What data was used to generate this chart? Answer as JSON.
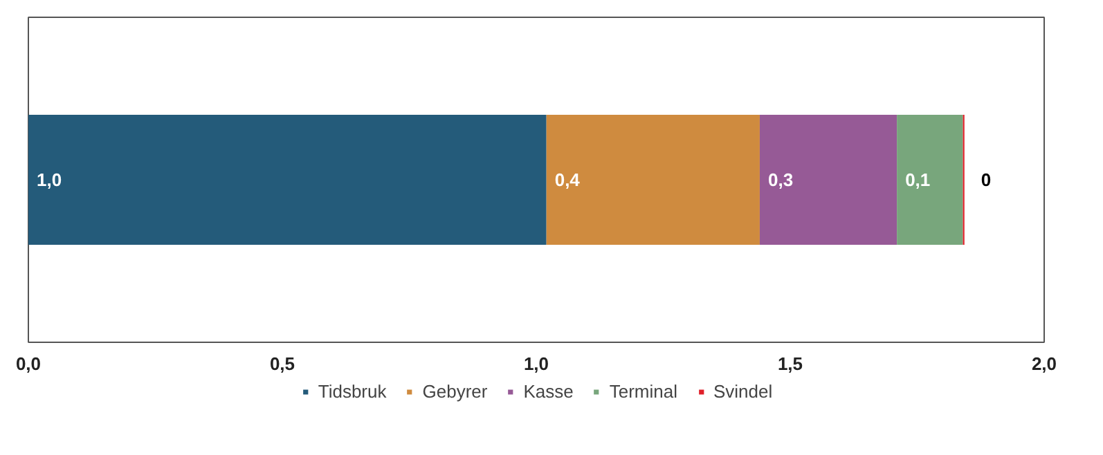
{
  "chart_data": {
    "type": "bar",
    "orientation": "horizontal",
    "stacked": true,
    "categories": [
      null
    ],
    "series": [
      {
        "name": "Tidsbruk",
        "color": "#245b7a",
        "values": [
          1.02
        ],
        "value_labels": [
          "1,0"
        ]
      },
      {
        "name": "Gebyrer",
        "color": "#cf8b3f",
        "values": [
          0.42
        ],
        "value_labels": [
          "0,4"
        ]
      },
      {
        "name": "Kasse",
        "color": "#965a96",
        "values": [
          0.27
        ],
        "value_labels": [
          "0,3"
        ]
      },
      {
        "name": "Terminal",
        "color": "#78a67c",
        "values": [
          0.13
        ],
        "value_labels": [
          "0,1"
        ]
      },
      {
        "name": "Svindel",
        "color": "#e0202a",
        "values": [
          0.003
        ],
        "value_labels": [
          "0"
        ]
      }
    ],
    "xlim": [
      0,
      2
    ],
    "xticks": [
      {
        "value": 0,
        "label": "0,0"
      },
      {
        "value": 0.5,
        "label": "0,5"
      },
      {
        "value": 1,
        "label": "1,0"
      },
      {
        "value": 1.5,
        "label": "1,5"
      },
      {
        "value": 2,
        "label": "2,0"
      }
    ],
    "grid": false,
    "legend": "bottom"
  }
}
